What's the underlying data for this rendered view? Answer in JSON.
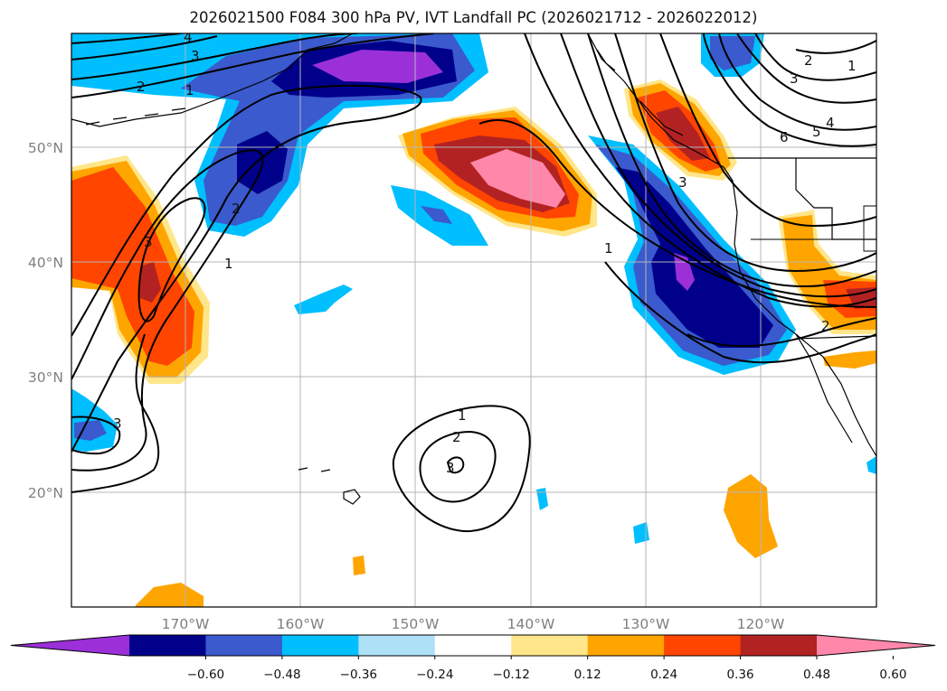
{
  "title": "2026021500 F084 300 hPa PV, IVT Landfall PC (2026021712 - 2026022012)",
  "map": {
    "lat_labels": [
      "50°N",
      "40°N",
      "30°N",
      "20°N"
    ],
    "lon_labels": [
      "170°W",
      "160°W",
      "150°W",
      "140°W",
      "130°W",
      "120°W"
    ],
    "contour_labels": [
      "1",
      "2",
      "3",
      "4",
      "5",
      "6"
    ]
  },
  "colorbar": {
    "ticks": [
      "−0.60",
      "−0.48",
      "−0.36",
      "−0.24",
      "−0.12",
      "0.12",
      "0.24",
      "0.36",
      "0.48",
      "0.60"
    ],
    "colors": [
      "#9b30d9",
      "#00008b",
      "#3a5acd",
      "#00bfff",
      "#aee0f8",
      "#ffffff",
      "#ffe68a",
      "#ffa500",
      "#ff4500",
      "#b22222",
      "#ff88aa"
    ]
  }
}
